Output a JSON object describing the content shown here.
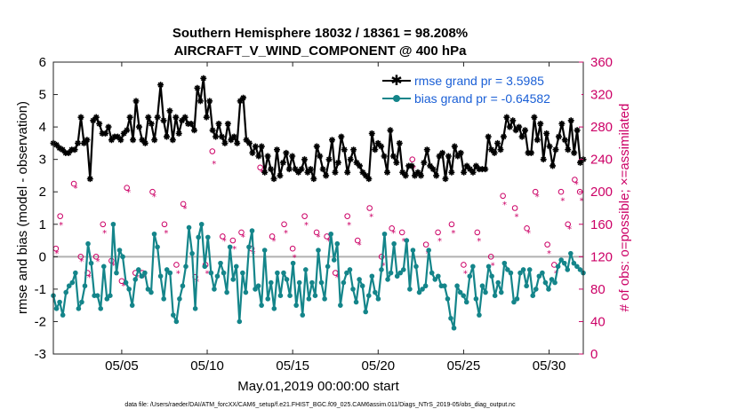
{
  "chart_data": {
    "type": "line",
    "title": "Southern Hemisphere 18032 / 18361 = 98.208%",
    "subtitle": "AIRCRAFT_V_WIND_COMPONENT @ 400 hPa",
    "xlabel": "May.01,2019 00:00:00 start",
    "ylabel_left": "rmse and bias (model - observation)",
    "ylabel_right": "# of obs: o=possible; ×=assimilated",
    "footnote": "data file: /Users/raeder/DAI/ATM_forcXX/CAM6_setup/f.e21.FHIST_BGC.f09_025.CAM6assim.011/Diags_NTrS_2019-05/obs_diag_output.nc",
    "x_tick_labels": [
      "05/05",
      "05/10",
      "05/15",
      "05/20",
      "05/25",
      "05/30"
    ],
    "x_tick_days": [
      5,
      10,
      15,
      20,
      25,
      30
    ],
    "xlim": [
      1,
      32
    ],
    "ylim_left": [
      -3,
      6
    ],
    "ylim_right": [
      0,
      360
    ],
    "y_ticks_left": [
      "-3",
      "-2",
      "-1",
      "0",
      "1",
      "2",
      "3",
      "4",
      "5",
      "6"
    ],
    "y_ticks_right": [
      "0",
      "40",
      "80",
      "120",
      "160",
      "200",
      "240",
      "280",
      "320",
      "360"
    ],
    "colors": {
      "rmse": "#000000",
      "bias": "#14858a",
      "obs": "#cc0066",
      "right_axis": "#cc0066",
      "legend_text": "#1a5fd6",
      "zero_line": "#b0b0b0"
    },
    "series": [
      {
        "name": "rmse grand pr = 3.5985",
        "axis": "left",
        "marker": "star",
        "values": [
          3.5,
          3.45,
          3.35,
          3.3,
          3.2,
          3.2,
          3.3,
          3.3,
          3.5,
          4.3,
          3.5,
          3.6,
          2.4,
          4.2,
          4.3,
          4.1,
          3.8,
          3.8,
          4.0,
          3.6,
          3.7,
          3.7,
          3.6,
          3.8,
          3.9,
          4.3,
          3.6,
          4.8,
          4.0,
          3.6,
          3.5,
          4.3,
          4.1,
          3.6,
          4.3,
          5.3,
          4.2,
          3.7,
          4.5,
          3.6,
          4.3,
          3.8,
          4.2,
          4.3,
          4.1,
          4.1,
          3.9,
          5.2,
          4.8,
          5.5,
          4.3,
          4.8,
          3.9,
          3.7,
          4.1,
          3.7,
          3.5,
          4.1,
          3.6,
          3.7,
          3.5,
          4.8,
          4.9,
          3.6,
          3.5,
          3.2,
          3.4,
          3.1,
          3.4,
          2.6,
          3.1,
          2.7,
          2.4,
          3.3,
          2.5,
          2.9,
          3.2,
          2.7,
          3.1,
          2.7,
          2.6,
          2.7,
          3.0,
          2.6,
          2.7,
          2.4,
          3.4,
          3.1,
          2.7,
          2.5,
          3.0,
          3.6,
          2.6,
          2.9,
          3.7,
          3.3,
          2.6,
          3.0,
          3.3,
          2.9,
          2.8,
          2.6,
          2.5,
          2.4,
          3.8,
          3.3,
          3.5,
          3.4,
          3.1,
          2.6,
          3.9,
          3.1,
          2.9,
          3.5,
          2.6,
          2.5,
          2.8,
          2.8,
          2.5,
          2.6,
          2.5,
          2.9,
          3.3,
          2.8,
          2.7,
          2.5,
          3.1,
          3.2,
          2.4,
          3.1,
          2.6,
          3.4,
          3.1,
          3.2,
          2.6,
          2.8,
          2.7,
          2.6,
          2.8,
          2.7,
          2.7,
          2.7,
          3.7,
          3.3,
          3.2,
          3.5,
          3.3,
          3.7,
          4.3,
          4.0,
          4.2,
          3.9,
          4.0,
          3.7,
          3.9,
          3.2,
          3.2,
          4.3,
          3.6,
          4.1,
          3.0,
          3.8,
          3.4,
          2.8,
          3.3,
          3.7,
          4.1,
          3.6,
          3.3,
          4.2,
          3.2,
          3.9,
          2.9,
          3.0
        ]
      },
      {
        "name": "bias grand pr = -0.64582",
        "axis": "left",
        "marker": "circle",
        "values": [
          -1.2,
          -1.6,
          -1.4,
          -1.8,
          -1.1,
          -0.9,
          -0.8,
          -0.5,
          -1.6,
          -1.4,
          -0.9,
          0.4,
          -0.2,
          -1.2,
          -1.2,
          -1.6,
          -0.3,
          -1.3,
          -1.2,
          1.0,
          -0.5,
          0.2,
          0.0,
          -0.8,
          -1.0,
          -1.5,
          -0.7,
          -0.4,
          -0.6,
          -0.5,
          -1.0,
          -1.1,
          0.7,
          0.3,
          -0.6,
          -1.3,
          -0.4,
          -0.5,
          -1.8,
          -2.0,
          -1.3,
          -0.9,
          -0.3,
          0.9,
          0.1,
          -1.6,
          0.6,
          1.0,
          -0.3,
          0.6,
          -0.5,
          -1.0,
          -0.6,
          -0.2,
          -0.5,
          -1.1,
          0.3,
          -0.7,
          -0.3,
          -2.0,
          -0.5,
          -1.1,
          0.3,
          0.8,
          -1.0,
          -0.9,
          -1.5,
          0.2,
          -1.3,
          -0.8,
          -1.6,
          -0.5,
          -1.2,
          -0.5,
          -0.7,
          -1.2,
          -0.2,
          -1.5,
          -0.8,
          -1.8,
          -0.4,
          -1.3,
          -0.8,
          -1.2,
          0.2,
          -0.8,
          -1.3,
          -0.3,
          0.7,
          -0.1,
          0.4,
          -1.5,
          -0.8,
          -0.5,
          -0.4,
          -1.0,
          -1.4,
          -0.7,
          -0.9,
          -1.7,
          -1.2,
          -0.6,
          -1.1,
          -1.3,
          -0.4,
          0.7,
          -0.7,
          -0.5,
          0.4,
          -0.6,
          -0.5,
          -0.4,
          0.5,
          -1.0,
          0.2,
          -0.3,
          -1.1,
          -1.0,
          -0.9,
          0.2,
          -0.5,
          -0.7,
          -0.6,
          -0.9,
          -0.9,
          -1.3,
          -1.9,
          -2.2,
          -0.9,
          -1.1,
          -1.2,
          -1.4,
          -0.6,
          -0.3,
          -1.3,
          -1.8,
          -0.9,
          -1.1,
          -0.3,
          -0.6,
          -1.2,
          -0.8,
          -1.1,
          -0.2,
          -0.4,
          -0.5,
          -1.4,
          -1.3,
          -0.5,
          -0.4,
          -0.9,
          -0.4,
          -1.2,
          -1.0,
          -0.6,
          -0.5,
          -0.8,
          -1.0,
          -0.7,
          -0.8,
          -0.3,
          -0.1,
          -0.2,
          -0.4,
          0.1,
          -0.2,
          -0.3,
          -0.4,
          -0.5
        ]
      }
    ],
    "obs_possible": {
      "name": "possible",
      "axis": "right",
      "marker": "o",
      "days": [
        1.15,
        1.4,
        2.2,
        2.6,
        3.0,
        3.5,
        3.9,
        4.4,
        5.0,
        5.3,
        5.8,
        6.2,
        6.8,
        7.5,
        8.2,
        8.6,
        9.3,
        9.9,
        10.3,
        10.9,
        11.5,
        12.0,
        12.6,
        13.1,
        13.8,
        14.5,
        15.0,
        15.7,
        16.4,
        17.0,
        17.5,
        18.2,
        18.8,
        19.5,
        20.2,
        20.8,
        21.4,
        22.0,
        22.8,
        23.5,
        24.3,
        25.0,
        25.8,
        26.6,
        27.3,
        28.0,
        28.7,
        29.2,
        29.9,
        30.3,
        30.7,
        31.1,
        31.5,
        31.8
      ],
      "counts": [
        130,
        170,
        210,
        120,
        100,
        120,
        160,
        115,
        90,
        205,
        100,
        100,
        200,
        160,
        110,
        185,
        95,
        110,
        250,
        145,
        140,
        150,
        130,
        230,
        145,
        160,
        130,
        170,
        150,
        145,
        100,
        170,
        140,
        180,
        120,
        155,
        150,
        240,
        135,
        150,
        160,
        110,
        150,
        120,
        195,
        180,
        155,
        200,
        135,
        110,
        200,
        160,
        215,
        200
      ]
    },
    "obs_assimilated": {
      "name": "assimilated",
      "axis": "right",
      "marker": "*",
      "days": [
        1.2,
        1.45,
        2.3,
        2.65,
        3.1,
        3.6,
        4.0,
        4.5,
        5.1,
        5.4,
        5.9,
        6.3,
        6.9,
        7.6,
        8.3,
        8.7,
        9.4,
        10.0,
        10.4,
        11.0,
        11.6,
        12.1,
        12.7,
        13.2,
        13.9,
        14.6,
        15.1,
        15.8,
        16.5,
        17.1,
        17.6,
        18.3,
        18.9,
        19.6,
        20.3,
        20.9,
        21.5,
        22.1,
        22.9,
        23.6,
        24.4,
        25.1,
        25.9,
        26.7,
        27.4,
        28.1,
        28.8,
        29.3,
        30.0,
        30.4,
        30.8,
        31.2,
        31.6,
        31.9
      ],
      "counts": [
        125,
        160,
        205,
        115,
        95,
        115,
        150,
        110,
        85,
        200,
        95,
        95,
        195,
        150,
        100,
        180,
        90,
        100,
        235,
        140,
        130,
        145,
        125,
        225,
        140,
        150,
        120,
        160,
        145,
        140,
        95,
        160,
        135,
        170,
        110,
        150,
        140,
        230,
        125,
        140,
        150,
        100,
        140,
        110,
        185,
        170,
        150,
        195,
        125,
        100,
        190,
        155,
        210,
        190
      ]
    }
  }
}
